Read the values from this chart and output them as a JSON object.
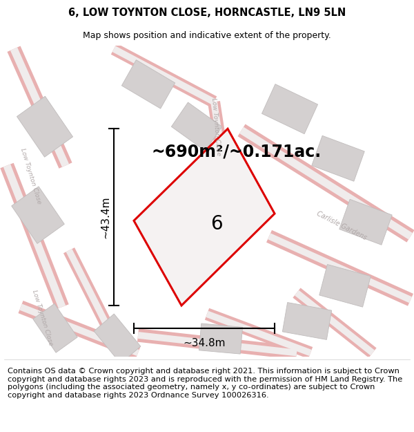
{
  "title_line1": "6, LOW TOYNTON CLOSE, HORNCASTLE, LN9 5LN",
  "title_line2": "Map shows position and indicative extent of the property.",
  "area_label": "~690m²/~0.171ac.",
  "width_label": "~34.8m",
  "height_label": "~43.4m",
  "plot_number": "6",
  "footer": "Contains OS data © Crown copyright and database right 2021. This information is subject to Crown copyright and database rights 2023 and is reproduced with the permission of HM Land Registry. The polygons (including the associated geometry, namely x, y co-ordinates) are subject to Crown copyright and database rights 2023 Ordnance Survey 100026316.",
  "map_bg": "#eeecec",
  "building_color": "#d4d0d0",
  "building_edge": "#c0bcbc",
  "road_color": "#e8b0b0",
  "plot_outline_color": "#dd0000",
  "plot_fill_color": "#f5f2f2",
  "street_label_color": "#b0a8a8",
  "footer_fontsize": 8.2,
  "title_fontsize": 10.5,
  "subtitle_fontsize": 9.0,
  "area_fontsize": 17,
  "plot_num_fontsize": 20
}
